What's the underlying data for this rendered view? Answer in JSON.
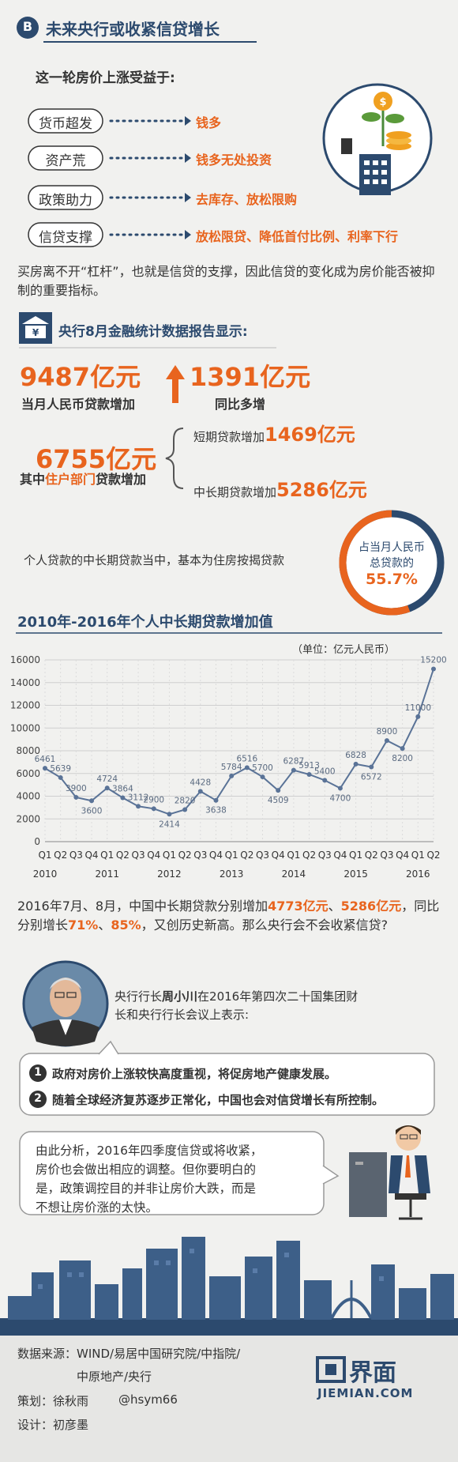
{
  "header": {
    "badge": "B",
    "title": "未来央行或收紧信贷增长"
  },
  "intro": "这一轮房价上涨受益于:",
  "factors": [
    {
      "label": "货币超发",
      "result": "钱多"
    },
    {
      "label": "资产荒",
      "result": "钱多无处投资"
    },
    {
      "label": "政策助力",
      "result": "去库存、放松限购"
    },
    {
      "label": "信贷支撑",
      "result": "放松限贷、降低首付比例、利率下行"
    }
  ],
  "paragraph1": "买房离不开“杠杆”，也就是信贷的支撑，因此信贷的变化成为房价能否被抑制的重要指标。",
  "report": {
    "heading": "央行8月金融统计数据报告显示:",
    "total": {
      "amount": "9487亿元",
      "caption": "当月人民币贷款增加"
    },
    "yoy": {
      "amount": "1391亿元",
      "caption": "同比多增"
    },
    "household": {
      "amount": "6755亿元",
      "caption": [
        {
          "text": "其中",
          "emphasis": false
        },
        {
          "text": "住户部门",
          "emphasis": true
        },
        {
          "text": "贷款增加",
          "emphasis": false
        }
      ]
    },
    "short_term": {
      "caption": "短期贷款增加",
      "amount": "1469亿元"
    },
    "long_term": {
      "caption": "中长期贷款增加",
      "amount": "5286亿元"
    }
  },
  "mortgage": {
    "text": "个人贷款的中长期贷款当中，基本为住房按揭贷款",
    "donut_lines": [
      "占当月人民币",
      "总贷款的"
    ],
    "share": {
      "value": 55.7,
      "label": "55.7%"
    }
  },
  "chart_data": {
    "type": "line",
    "title": "2010年-2016年个人中长期贷款增加值",
    "unit": "（单位：亿元人民币）",
    "categories": [
      "Q1",
      "Q2",
      "Q3",
      "Q4",
      "Q1",
      "Q2",
      "Q3",
      "Q4",
      "Q1",
      "Q2",
      "Q3",
      "Q4",
      "Q1",
      "Q2",
      "Q3",
      "Q4",
      "Q1",
      "Q2",
      "Q3",
      "Q4",
      "Q1",
      "Q2",
      "Q3",
      "Q4",
      "Q1",
      "Q2"
    ],
    "years": [
      "2010",
      "2011",
      "2012",
      "2013",
      "2014",
      "2015",
      "2016"
    ],
    "series": [
      {
        "name": "个人中长期贷款增加值",
        "color": "#5a7397",
        "values": [
          6461,
          5639,
          3900,
          3600,
          4724,
          3864,
          3112,
          2900,
          2414,
          2820,
          4428,
          3638,
          5784,
          6516,
          5700,
          4509,
          6287,
          5913,
          5400,
          4700,
          6828,
          6572,
          8900,
          8200,
          11000,
          15200
        ]
      }
    ],
    "ylim": [
      0,
      16000
    ],
    "yticks": [
      0,
      2000,
      4000,
      6000,
      8000,
      10000,
      12000,
      14000,
      16000
    ],
    "grid": true
  },
  "paragraph2": [
    {
      "text": "2016年7月、8月，中国中长期贷款分别增加",
      "emphasis": false
    },
    {
      "text": "4773亿元",
      "emphasis": true
    },
    {
      "text": "、",
      "emphasis": false
    },
    {
      "text": "5286亿元",
      "emphasis": true
    },
    {
      "text": "，同比分别增长",
      "emphasis": false
    },
    {
      "text": "71%",
      "emphasis": true
    },
    {
      "text": "、",
      "emphasis": false
    },
    {
      "text": "85%",
      "emphasis": true
    },
    {
      "text": "，又创历史新高。那么央行会不会收紧信贷?",
      "emphasis": false
    }
  ],
  "quote": {
    "intro": [
      {
        "text": "央行行长",
        "emphasis": false
      },
      {
        "text": "周小川",
        "emphasis": true
      },
      {
        "text": "在2016年第四次二十国集团财长和央行行长会议上表示:",
        "emphasis": false
      }
    ],
    "points": [
      {
        "number": "1",
        "text": "政府对房价上涨较快高度重视，将促房地产健康发展。"
      },
      {
        "number": "2",
        "text": "随着全球经济复苏逐步正常化，中国也会对信贷增长有所控制。"
      }
    ]
  },
  "analysis": "由此分析，2016年四季度信贷或将收紧，房价也会做出相应的调整。但你要明白的是，政策调控目的并非让房价大跌，而是不想让房价涨的太快。",
  "footer": {
    "source_lines": [
      "数据来源：WIND/易居中国研究院/中指院/",
      "中原地产/央行"
    ],
    "planner": "策划：徐秋雨",
    "handle": "@hsym66",
    "designer": "设计：初彦墨",
    "logo": "界面",
    "logo_domain": "JIEMIAN.COM"
  }
}
